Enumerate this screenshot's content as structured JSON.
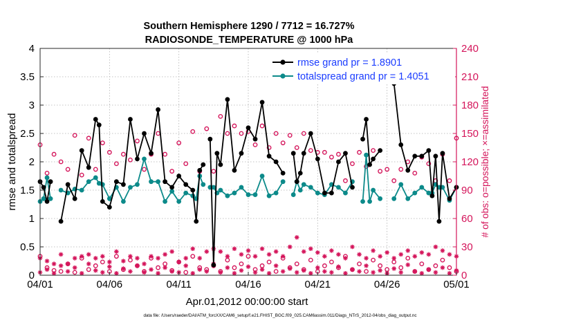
{
  "chart_data": {
    "type": "scatter",
    "title_line1": "Southern Hemisphere 1290 / 7712 = 16.727%",
    "title_line2": "RADIOSONDE_TEMPERATURE @ 1000 hPa",
    "xlabel": "Apr.01,2012 00:00:00 start",
    "ylabel_left": "rmse and totalspread",
    "ylabel_right": "# of obs: o=possible; ×=assimilated",
    "footer": "data file: /Users/raeder/DAI/ATM_forcXX/CAM6_setup/f.e21.FHIST_BGC.f09_025.CAM6assim.011/Diags_NTrS_2012-04/obs_diag_output.nc",
    "xlim": [
      0,
      30
    ],
    "ylim_left": [
      0,
      4
    ],
    "ylim_right": [
      0,
      240
    ],
    "x_ticks": [
      0,
      5,
      10,
      15,
      20,
      25,
      30
    ],
    "x_tick_labels": [
      "04/01",
      "04/06",
      "04/11",
      "04/16",
      "04/21",
      "04/26",
      "05/01"
    ],
    "y_left_ticks": [
      0,
      0.5,
      1,
      1.5,
      2,
      2.5,
      3,
      3.5,
      4
    ],
    "y_left_tick_labels": [
      "0",
      "0.5",
      "1",
      "1.5",
      "2",
      "2.5",
      "3",
      "3.5",
      "4"
    ],
    "y_right_ticks": [
      0,
      30,
      60,
      90,
      120,
      150,
      180,
      210,
      240
    ],
    "y_right_tick_labels": [
      "0",
      "30",
      "60",
      "90",
      "120",
      "150",
      "180",
      "210",
      "240"
    ],
    "legend_position": "top-right",
    "colors": {
      "rmse": "#000000",
      "spread": "#0c8a8a",
      "obs": "#d4145a",
      "right_axis": "#d4145a",
      "legend_text": "#1a3cff"
    },
    "series": [
      {
        "name": "rmse grand pr = 1.8901",
        "axis": "left",
        "x": [
          0.0,
          0.25,
          0.5,
          0.75,
          1.0,
          1.5,
          2.0,
          2.5,
          3.0,
          3.5,
          4.0,
          4.25,
          4.5,
          5.0,
          5.5,
          6.0,
          6.5,
          7.0,
          7.5,
          8.0,
          8.5,
          9.0,
          9.5,
          10.0,
          10.5,
          11.0,
          11.25,
          11.5,
          11.75,
          12.0,
          12.25,
          12.5,
          12.75,
          13.0,
          13.5,
          14.0,
          14.5,
          15.0,
          15.5,
          16.0,
          16.5,
          17.0,
          17.5,
          18.0,
          18.25,
          18.5,
          18.75,
          19.0,
          19.5,
          20.0,
          20.5,
          21.0,
          21.5,
          22.0,
          22.5,
          23.0,
          23.25,
          23.5,
          23.75,
          24.0,
          24.5,
          25.0,
          25.5,
          26.0,
          26.5,
          27.0,
          27.5,
          28.0,
          28.25,
          28.5,
          28.75,
          29.0,
          29.5,
          30.0
        ],
        "values": [
          1.65,
          1.55,
          1.3,
          1.65,
          null,
          0.95,
          1.6,
          1.35,
          2.2,
          1.9,
          2.75,
          2.65,
          1.3,
          1.2,
          1.65,
          1.6,
          2.75,
          2.05,
          2.5,
          2.15,
          2.92,
          1.65,
          1.55,
          1.75,
          1.6,
          1.5,
          0.95,
          1.85,
          1.95,
          null,
          2.4,
          0.18,
          2.15,
          1.95,
          3.1,
          1.85,
          2.15,
          2.6,
          2.4,
          3.05,
          2.1,
          2.0,
          1.8,
          null,
          2.15,
          1.65,
          1.8,
          2.15,
          2.5,
          2.05,
          1.45,
          1.45,
          2.0,
          2.15,
          1.55,
          null,
          2.4,
          2.75,
          1.95,
          2.05,
          2.2,
          null,
          3.38,
          2.3,
          1.85,
          2.1,
          2.1,
          2.2,
          1.4,
          2.1,
          0.95,
          2.15,
          1.35,
          1.55
        ]
      },
      {
        "name": "totalspread grand pr = 1.4051",
        "axis": "left",
        "x": [
          0.0,
          0.25,
          0.5,
          0.75,
          1.0,
          1.5,
          2.0,
          2.5,
          3.0,
          3.5,
          4.0,
          4.25,
          4.5,
          5.0,
          5.5,
          6.0,
          6.5,
          7.0,
          7.5,
          8.0,
          8.5,
          9.0,
          9.5,
          10.0,
          10.5,
          11.0,
          11.25,
          11.5,
          11.75,
          12.0,
          12.25,
          12.5,
          12.75,
          13.0,
          13.5,
          14.0,
          14.5,
          15.0,
          15.5,
          16.0,
          16.5,
          17.0,
          17.5,
          18.0,
          18.25,
          18.5,
          18.75,
          19.0,
          19.5,
          20.0,
          20.5,
          21.0,
          21.5,
          22.0,
          22.5,
          23.0,
          23.25,
          23.5,
          23.75,
          24.0,
          24.5,
          25.0,
          25.5,
          26.0,
          26.5,
          27.0,
          27.5,
          28.0,
          28.25,
          28.5,
          28.75,
          29.0,
          29.5,
          30.0
        ],
        "values": [
          1.3,
          1.35,
          1.72,
          1.35,
          null,
          1.5,
          1.45,
          1.52,
          1.5,
          1.65,
          1.72,
          1.62,
          1.6,
          1.35,
          1.55,
          1.3,
          1.55,
          1.6,
          2.05,
          1.65,
          1.65,
          1.3,
          1.48,
          1.3,
          1.45,
          1.4,
          1.35,
          1.75,
          1.6,
          null,
          1.55,
          1.55,
          1.45,
          1.5,
          1.4,
          1.45,
          1.55,
          1.42,
          1.42,
          1.75,
          1.4,
          1.45,
          1.65,
          null,
          1.42,
          1.65,
          1.5,
          1.6,
          1.55,
          1.45,
          1.42,
          1.6,
          1.55,
          1.45,
          1.65,
          null,
          1.3,
          2.12,
          1.3,
          1.5,
          1.35,
          null,
          1.35,
          1.6,
          1.35,
          1.45,
          1.55,
          1.45,
          1.45,
          1.6,
          1.55,
          1.55,
          1.32,
          1.55
        ]
      },
      {
        "name": "possible",
        "axis": "right",
        "marker": "circle",
        "x": [
          0.0,
          0.5,
          1.0,
          1.5,
          2.0,
          2.5,
          3.0,
          3.5,
          4.0,
          4.5,
          5.0,
          5.5,
          6.0,
          6.5,
          7.0,
          7.5,
          8.0,
          8.5,
          9.0,
          9.5,
          10.0,
          10.5,
          11.0,
          11.5,
          12.0,
          12.5,
          13.0,
          13.5,
          14.0,
          14.5,
          15.0,
          15.5,
          16.0,
          16.5,
          17.0,
          17.5,
          18.0,
          18.5,
          19.0,
          19.5,
          20.0,
          20.5,
          21.0,
          21.5,
          22.0,
          22.5,
          23.0,
          23.5,
          24.0,
          24.5,
          25.0,
          25.5,
          26.0,
          26.5,
          27.0,
          27.5,
          28.0,
          28.5,
          29.0,
          29.5,
          30.0
        ],
        "values": [
          138,
          108,
          128,
          120,
          112,
          148,
          106,
          145,
          112,
          140,
          130,
          118,
          128,
          122,
          142,
          112,
          128,
          150,
          128,
          110,
          140,
          118,
          152,
          110,
          155,
          110,
          168,
          150,
          158,
          150,
          152,
          138,
          158,
          135,
          150,
          140,
          148,
          135,
          150,
          132,
          130,
          130,
          125,
          128,
          100,
          118,
          130,
          115,
          132,
          110,
          112,
          100,
          112,
          120,
          108,
          125,
          118,
          100,
          128,
          100,
          145
        ],
        "values_low": [
          20,
          8,
          5,
          4,
          12,
          3,
          18,
          6,
          10,
          14,
          4,
          20,
          6,
          16,
          10,
          4,
          18,
          8,
          12,
          5,
          14,
          3,
          20,
          8,
          6,
          10,
          4,
          16,
          8,
          12,
          20,
          6,
          10,
          14,
          4,
          18,
          8,
          12,
          6,
          16,
          4,
          10,
          14,
          8,
          20,
          6,
          12,
          4,
          16,
          10,
          6,
          14,
          8,
          18,
          4,
          12,
          6,
          10,
          16,
          8,
          4
        ]
      },
      {
        "name": "assimilated",
        "axis": "right",
        "marker": "asterisk",
        "x": [
          0.0,
          0.5,
          1.0,
          1.5,
          2.0,
          2.5,
          3.0,
          3.5,
          4.0,
          4.5,
          5.0,
          5.5,
          6.0,
          6.5,
          7.0,
          7.5,
          8.0,
          8.5,
          9.0,
          9.5,
          10.0,
          10.5,
          11.0,
          11.5,
          12.0,
          12.5,
          13.0,
          13.5,
          14.0,
          14.5,
          15.0,
          15.5,
          16.0,
          16.5,
          17.0,
          17.5,
          18.0,
          18.5,
          19.0,
          19.5,
          20.0,
          20.5,
          21.0,
          21.5,
          22.0,
          22.5,
          23.0,
          23.5,
          24.0,
          24.5,
          25.0,
          25.5,
          26.0,
          26.5,
          27.0,
          27.5,
          28.0,
          28.5,
          29.0,
          29.5,
          30.0
        ],
        "values": [
          18,
          15,
          12,
          22,
          12,
          18,
          20,
          22,
          18,
          20,
          14,
          25,
          15,
          20,
          18,
          12,
          20,
          18,
          22,
          25,
          14,
          18,
          28,
          18,
          25,
          28,
          25,
          20,
          28,
          22,
          26,
          20,
          28,
          22,
          25,
          20,
          30,
          40,
          25,
          28,
          24,
          20,
          26,
          22,
          18,
          30,
          22,
          18,
          26,
          20,
          24,
          18,
          22,
          26,
          20,
          24,
          22,
          30,
          26,
          22,
          20
        ],
        "values_low": [
          3,
          6,
          2,
          10,
          4,
          8,
          2,
          12,
          5,
          3,
          9,
          2,
          7,
          4,
          10,
          3,
          6,
          2,
          8,
          4,
          3,
          10,
          2,
          6,
          4,
          12,
          3,
          8,
          2,
          5,
          9,
          3,
          6,
          2,
          10,
          4,
          7,
          3,
          5,
          2,
          8,
          4,
          3,
          9,
          2,
          6,
          4,
          10,
          3,
          5,
          2,
          7,
          3,
          11,
          4,
          2,
          6,
          3,
          8,
          2,
          5
        ]
      }
    ]
  }
}
